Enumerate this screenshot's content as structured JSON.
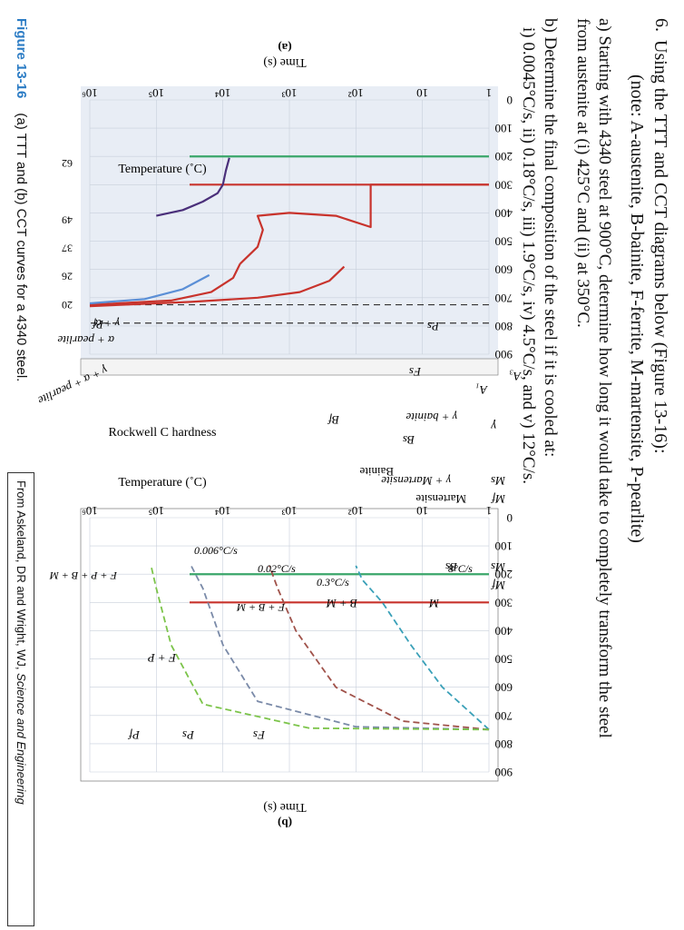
{
  "question": {
    "number": "6.",
    "title": "Using the TTT and CCT diagrams below (Figure 13-16):",
    "note": "(note: A-austenite, B-bainite, F-ferrite, M-martensite, P-pearlite)",
    "part_a_line1": "a) Starting with 4340 steel at 900°C, determine how long it would take to completely transform the steel",
    "part_a_line2": "from austenite at (i) 425°C and (ii) at 350°C.",
    "part_b_line1": "b) Determine the final composition of the steel if it is cooled at:",
    "part_b_line2": "i) 0.0045°C/s, ii) 0.18°C/s, iii) 1.9°C/s, iv) 4.5°C/s, and v) 12°C/s."
  },
  "caption": {
    "figure_label": "Figure 13-16",
    "text": "(a) TTT and (b) CCT curves for a 4340 steel."
  },
  "credit": {
    "prefix": "From Askeland, DR and Wright, WJ, ",
    "title_italic": "Science and Engineering"
  },
  "colors": {
    "plot_bg_a": "#e8edf5",
    "curve_red": "#c8332c",
    "curve_purple": "#4a2f7a",
    "curve_blue": "#5b8fd6",
    "curve_green": "#3aa66a",
    "curve_teal": "#3aa0b8",
    "curve_brown": "#a0524a",
    "curve_gray": "#7a8aa8",
    "curve_lime": "#7cc44a",
    "caption_blue": "#2a7bc4"
  },
  "chart_data": [
    {
      "type": "line",
      "panel_label": "(a)",
      "xlabel": "Time (s)",
      "ylabel": "Temperature (˚C)",
      "right_axis_label": "Rockwell C hardness",
      "x_scale": "log",
      "xlim": [
        1,
        1000000
      ],
      "ylim": [
        0,
        900
      ],
      "x_ticks": [
        "1",
        "10",
        "10²",
        "10³",
        "10⁴",
        "10⁵",
        "10⁶"
      ],
      "y_ticks": [
        "0",
        "100",
        "200",
        "300",
        "400",
        "500",
        "600",
        "700",
        "800",
        "900"
      ],
      "hardness_ticks": [
        {
          "temperature": 700,
          "label": "20"
        },
        {
          "temperature": 600,
          "label": "26"
        },
        {
          "temperature": 500,
          "label": "37"
        },
        {
          "temperature": 400,
          "label": "49"
        },
        {
          "temperature": 200,
          "label": "62"
        }
      ],
      "reference_lines": [
        {
          "label": "A₃",
          "temperature": 790
        },
        {
          "label": "A₁",
          "temperature": 725
        }
      ],
      "horizontal_lines": [
        {
          "label": "Ms",
          "temperature": 300
        },
        {
          "label": "Mf",
          "temperature": 200
        }
      ],
      "region_labels": [
        "γ",
        "γ + α",
        "α + pearlite",
        "γ + α + pearlite",
        "γ + bainite",
        "γ + Martensite",
        "Martensite",
        "Bainite"
      ],
      "curve_labels": [
        "Fs",
        "Ps",
        "Pf",
        "Bs",
        "Bf"
      ],
      "series": [
        {
          "name": "Fs",
          "x": [
            1000000,
            30000,
            3000,
            700,
            250,
            150
          ],
          "y": [
            730,
            715,
            700,
            680,
            640,
            590
          ]
        },
        {
          "name": "Ps",
          "x": [
            1000000,
            60000,
            15000,
            7000,
            5500
          ],
          "y": [
            725,
            710,
            680,
            630,
            580
          ]
        },
        {
          "name": "Pf",
          "x": [
            1000000,
            150000,
            40000,
            16000
          ],
          "y": [
            720,
            705,
            670,
            620
          ]
        },
        {
          "name": "Bs",
          "x": [
            5500,
            3000,
            2500,
            3000,
            1000,
            200,
            60,
            60,
            30,
            1
          ],
          "y": [
            580,
            520,
            460,
            410,
            400,
            410,
            450,
            300,
            300,
            300
          ]
        },
        {
          "name": "Bf",
          "x": [
            100000,
            40000,
            20000,
            12000,
            10000,
            9000,
            8000
          ],
          "y": [
            410,
            390,
            360,
            330,
            300,
            250,
            205
          ]
        }
      ]
    },
    {
      "type": "line",
      "panel_label": "(b)",
      "xlabel": "Time (s)",
      "ylabel": "Temperature (˚C)",
      "x_scale": "log",
      "xlim": [
        1,
        1000000
      ],
      "ylim": [
        0,
        900
      ],
      "x_ticks": [
        "1",
        "10",
        "10²",
        "10³",
        "10⁴",
        "10⁵",
        "10⁶"
      ],
      "y_ticks": [
        "0",
        "100",
        "200",
        "300",
        "400",
        "500",
        "600",
        "700",
        "800",
        "900"
      ],
      "horizontal_lines": [
        {
          "label": "Ms",
          "temperature": 300
        },
        {
          "label": "Mf",
          "temperature": 200
        }
      ],
      "region_labels": [
        "M",
        "B + M",
        "F + B + M",
        "F + P + B + M",
        "F + P"
      ],
      "curve_labels": [
        "Fs",
        "Ps",
        "Pf",
        "Bs"
      ],
      "series": [
        {
          "name": "8°C/s",
          "x": [
            1,
            5,
            15,
            40,
            80,
            100
          ],
          "y": [
            750,
            600,
            450,
            300,
            220,
            170
          ]
        },
        {
          "name": "0.3°C/s",
          "x": [
            1,
            20,
            200,
            800,
            1500,
            2000
          ],
          "y": [
            750,
            720,
            600,
            400,
            250,
            170
          ]
        },
        {
          "name": "0.02°C/s",
          "x": [
            1,
            100,
            3000,
            10000,
            20000,
            30000
          ],
          "y": [
            750,
            740,
            650,
            450,
            250,
            170
          ]
        },
        {
          "name": "0.006°C/s",
          "x": [
            1,
            500,
            20000,
            60000,
            100000,
            120000
          ],
          "y": [
            750,
            745,
            660,
            450,
            250,
            170
          ]
        }
      ]
    }
  ]
}
